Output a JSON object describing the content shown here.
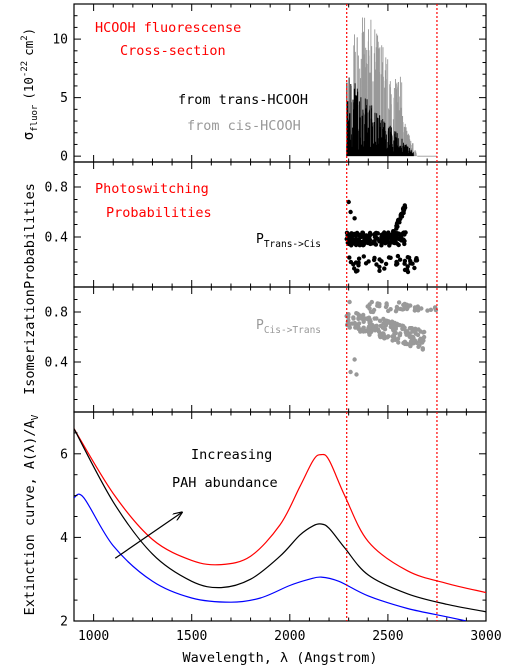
{
  "figure": {
    "xlabel": "Wavelength, λ (Angstrom)",
    "x_ticks": [
      "1000",
      "1500",
      "2000",
      "2500",
      "3000"
    ],
    "xlim": [
      900,
      3000
    ],
    "marker_lines_x": [
      2290,
      2750
    ]
  },
  "chart_data": [
    {
      "type": "line",
      "panel": "fluorescence",
      "title": "HCOOH fluorescense",
      "subtitle": "Cross-section",
      "ylabel_main": "σ",
      "ylabel_sub": "fluor",
      "ylabel_unit_pre": "(10",
      "ylabel_exp": "-22",
      "ylabel_unit_post": "cm",
      "ylabel_exp2": "2",
      "ylabel_close": ")",
      "ylim": [
        -0.5,
        13
      ],
      "y_ticks": [
        "0",
        "5",
        "10"
      ],
      "series": [
        {
          "name": "from trans-HCOOH",
          "color": "#000000",
          "x_range": [
            2290,
            2630
          ],
          "peak_max": 7.5
        },
        {
          "name": "from cis-HCOOH",
          "color": "#999999",
          "x_range": [
            2290,
            2650
          ],
          "peak_max": 12
        }
      ]
    },
    {
      "type": "scatter",
      "panel": "trans_to_cis",
      "title": "Photoswitching",
      "subtitle": "Probabilities",
      "ylabel": "Probabilities",
      "ylim": [
        0,
        1
      ],
      "y_ticks": [
        "0.8",
        "0.4"
      ],
      "series": [
        {
          "name_main": "P",
          "name_sub": "Trans->Cis",
          "color": "#000000",
          "main_band": {
            "x": [
              2290,
              2590
            ],
            "y": [
              0.32,
              0.45
            ]
          },
          "low_band": {
            "x": [
              2300,
              2650
            ],
            "y": [
              0.12,
              0.25
            ]
          },
          "outliers": [
            [
              2300,
              0.68
            ],
            [
              2310,
              0.6
            ],
            [
              2330,
              0.55
            ]
          ]
        }
      ]
    },
    {
      "type": "scatter",
      "panel": "cis_to_trans",
      "ylabel": "Isomerization",
      "ylim": [
        0,
        1
      ],
      "y_ticks": [
        "0.8",
        "0.4"
      ],
      "series": [
        {
          "name_main": "P",
          "name_sub": "Cis->Trans",
          "color": "#999999",
          "main_band": {
            "x": [
              2290,
              2690
            ],
            "y": [
              0.55,
              0.75
            ]
          },
          "high_band": {
            "x": [
              2390,
              2750
            ],
            "y": [
              0.8,
              0.88
            ]
          },
          "outliers": [
            [
              2310,
              0.32
            ],
            [
              2340,
              0.3
            ],
            [
              2330,
              0.42
            ],
            [
              2305,
              0.88
            ]
          ]
        }
      ]
    },
    {
      "type": "line",
      "panel": "extinction",
      "ylabel": "Extinction curve, A(λ)/A",
      "ylabel_sub": "V",
      "ylim": [
        2,
        7
      ],
      "y_ticks": [
        "2",
        "4",
        "6"
      ],
      "annotation_line1": "Increasing",
      "annotation_line2": "PAH abundance",
      "arrow": {
        "from": [
          1110,
          3.5
        ],
        "to": [
          1450,
          4.6
        ]
      },
      "series": [
        {
          "color": "#ff0000",
          "x": [
            900,
            1100,
            1300,
            1500,
            1650,
            1800,
            1950,
            2050,
            2120,
            2160,
            2200,
            2280,
            2400,
            2600,
            2800,
            3000
          ],
          "y": [
            6.6,
            5.05,
            3.95,
            3.45,
            3.35,
            3.55,
            4.3,
            5.2,
            5.85,
            5.98,
            5.85,
            5.0,
            3.9,
            3.2,
            2.9,
            2.68
          ]
        },
        {
          "color": "#000000",
          "x": [
            900,
            1100,
            1300,
            1500,
            1650,
            1800,
            1950,
            2050,
            2120,
            2160,
            2200,
            2280,
            2400,
            2600,
            2800,
            3000
          ],
          "y": [
            6.6,
            4.85,
            3.6,
            2.95,
            2.8,
            3.0,
            3.55,
            4.05,
            4.28,
            4.32,
            4.22,
            3.75,
            3.1,
            2.65,
            2.4,
            2.22
          ]
        },
        {
          "color": "#0000ff",
          "x": [
            900,
            950,
            1100,
            1300,
            1500,
            1700,
            1850,
            2000,
            2100,
            2160,
            2250,
            2400,
            2600,
            2800,
            2900
          ],
          "y": [
            4.95,
            4.95,
            3.8,
            2.95,
            2.55,
            2.45,
            2.55,
            2.85,
            3.0,
            3.05,
            2.95,
            2.6,
            2.3,
            2.1,
            2.0
          ]
        }
      ]
    }
  ]
}
